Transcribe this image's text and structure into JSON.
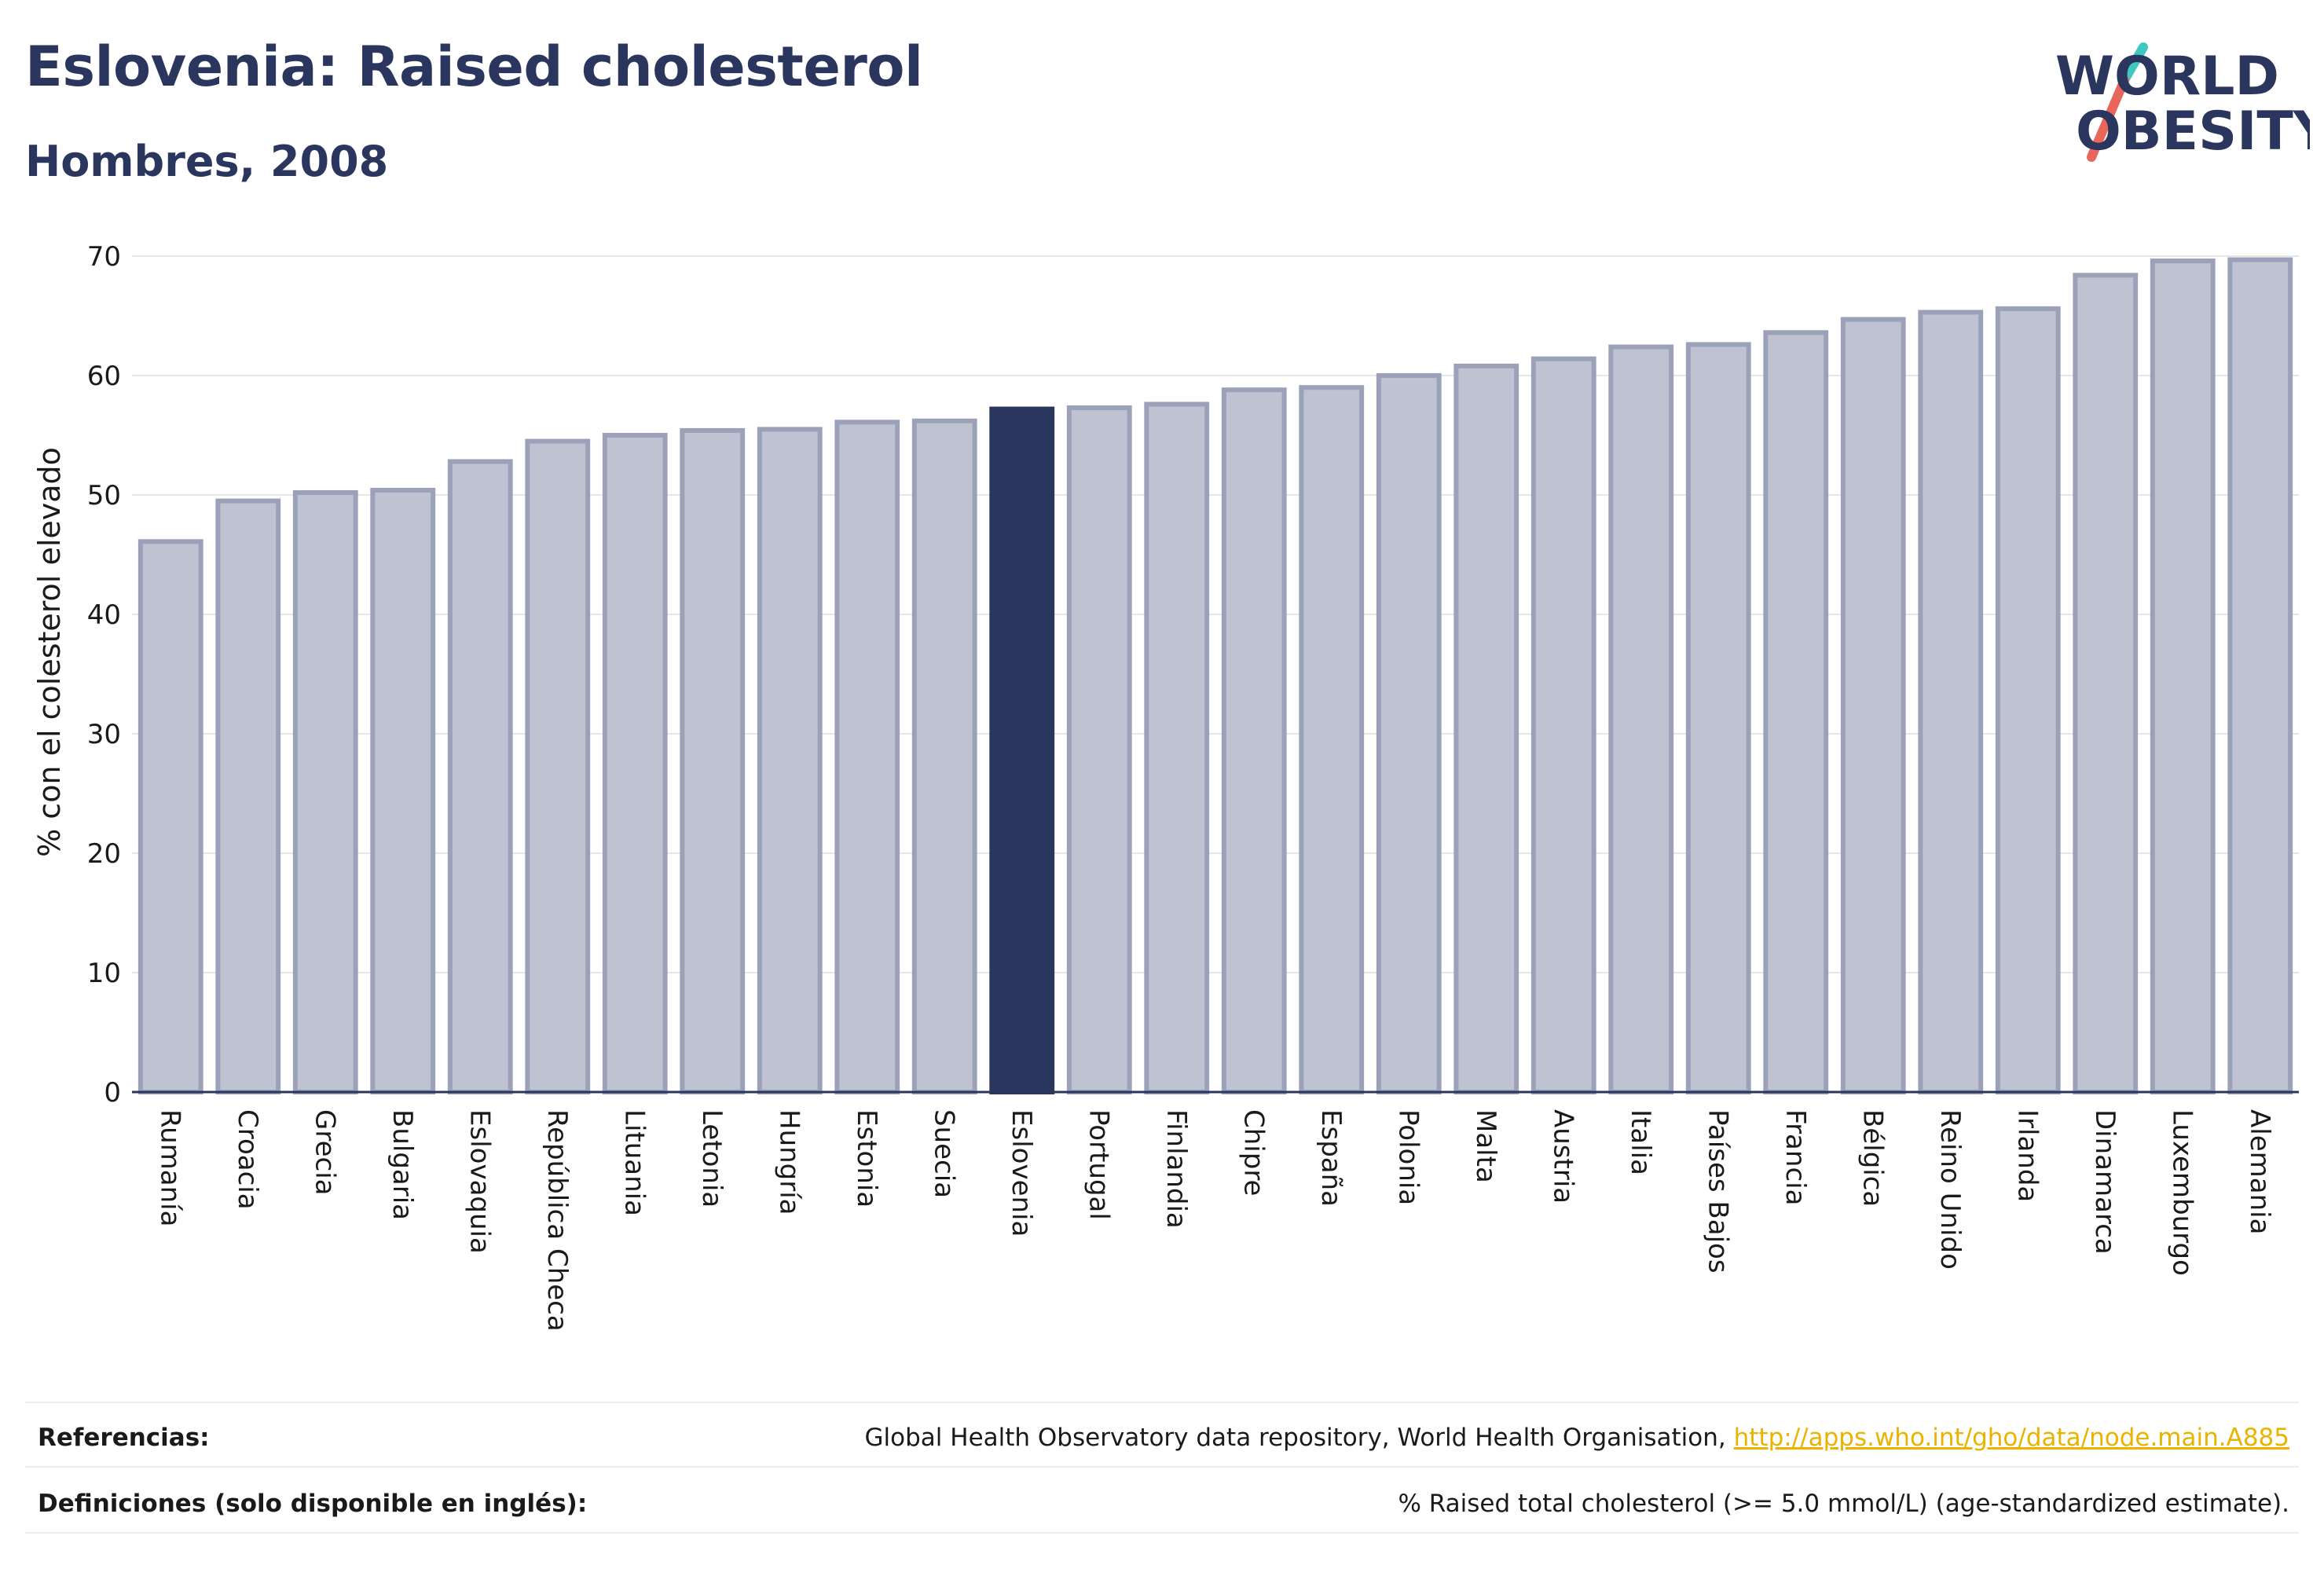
{
  "title": "Eslovenia: Raised cholesterol",
  "subtitle": "Hombres, 2008",
  "logo": {
    "line1": "WORLD",
    "line2": "OBESITY",
    "text_color": "#2b365f",
    "slash_colors": [
      "#3ec8c0",
      "#e8665a"
    ]
  },
  "colors": {
    "bar": "#bfc2d0",
    "bar_stroke": "#9ba1b8",
    "highlight": "#2b365f",
    "grid": "#e6e6e6",
    "axis": "#2b365f"
  },
  "chart_data": {
    "type": "bar",
    "title": "Eslovenia: Raised cholesterol",
    "subtitle": "Hombres, 2008",
    "xlabel": "",
    "ylabel": "% con el colesterol elevado",
    "ylim": [
      0,
      70
    ],
    "yticks": [
      0,
      10,
      20,
      30,
      40,
      50,
      60,
      70
    ],
    "grid": true,
    "highlight": "Eslovenia",
    "categories": [
      "Rumanía",
      "Croacia",
      "Grecia",
      "Bulgaria",
      "Eslovaquia",
      "República Checa",
      "Lituania",
      "Letonia",
      "Hungría",
      "Estonia",
      "Suecia",
      "Eslovenia",
      "Portugal",
      "Finlandia",
      "Chipre",
      "España",
      "Polonia",
      "Malta",
      "Austria",
      "Italia",
      "Países Bajos",
      "Francia",
      "Bélgica",
      "Reino Unido",
      "Irlanda",
      "Dinamarca",
      "Luxemburgo",
      "Alemania"
    ],
    "values": [
      46.1,
      49.5,
      50.2,
      50.4,
      52.8,
      54.5,
      55.0,
      55.4,
      55.5,
      56.1,
      56.2,
      57.2,
      57.3,
      57.6,
      58.8,
      59.0,
      60.0,
      60.8,
      61.4,
      62.4,
      62.6,
      63.6,
      64.7,
      65.3,
      65.6,
      68.4,
      69.6,
      69.7
    ]
  },
  "footer": {
    "references_label": "Referencias:",
    "references_text": "Global Health Observatory data repository, World Health Organisation, ",
    "references_link": "http://apps.who.int/gho/data/node.main.A885",
    "definitions_label": "Definiciones (solo disponible en inglés):",
    "definitions_text": "% Raised total cholesterol (>= 5.0 mmol/L) (age-standardized estimate)."
  }
}
